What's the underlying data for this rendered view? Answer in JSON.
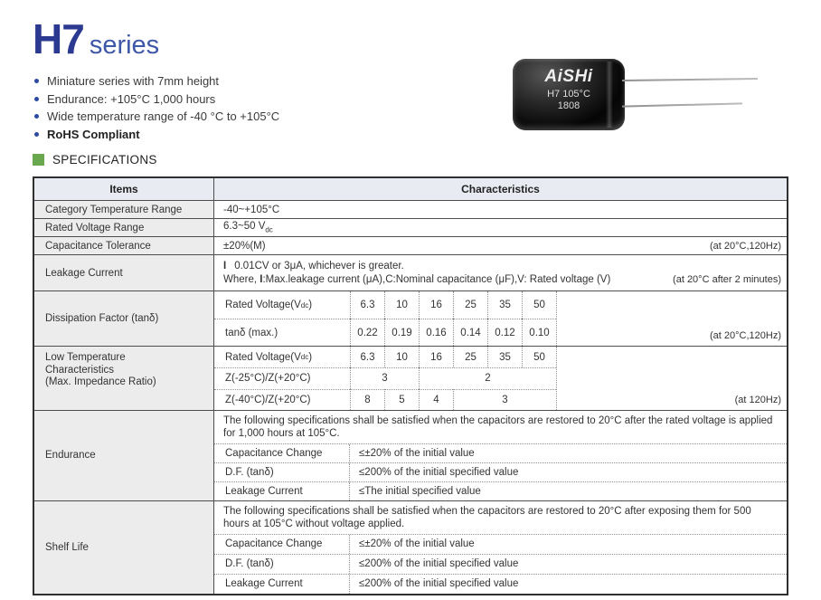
{
  "colors": {
    "title_blue": "#2b3990",
    "series_blue": "#3e57a8",
    "bullet_blue": "#2c4aa0",
    "section_green": "#6aa84f",
    "header_bg": "#e9ebf2",
    "items_col_bg": "#ececec"
  },
  "title": {
    "code": "H7",
    "series": "series"
  },
  "features": [
    "Miniature series with 7mm height",
    "Endurance: +105°C 1,000 hours",
    "Wide temperature range of -40 °C to +105°C",
    "RoHS Compliant"
  ],
  "capacitor": {
    "brand": "AiSHi",
    "line1": "H7 105°C",
    "line2": "1808"
  },
  "section_header": "SPECIFICATIONS",
  "table": {
    "header": {
      "items": "Items",
      "characteristics": "Characteristics"
    },
    "category_row": {
      "label": "Category Temperature Range",
      "value": "-40~+105°C"
    },
    "voltage_row": {
      "label": "Rated Voltage Range",
      "value_pre": "6.3~50 V",
      "value_sub": "dc"
    },
    "tolerance_row": {
      "label": "Capacitance Tolerance",
      "value": "±20%(M)",
      "note": "(at 20°C,120Hz)"
    },
    "leakage_row": {
      "label": "Leakage Current",
      "line1_bold": "I",
      "line1_text": "0.01CV or 3μA, whichever is greater.",
      "line2_pre": "Where, ",
      "line2_bold": "I",
      "line2_text": ":Max.leakage current (μA),C:Nominal capacitance (μF),V: Rated voltage (V)",
      "note": "(at 20°C after 2 minutes)"
    },
    "dissipation": {
      "label": "Dissipation Factor (tanδ)",
      "voltage_label_pre": "Rated Voltage(V",
      "voltage_label_sub": "dc",
      "voltage_label_post": ")",
      "voltages": [
        "6.3",
        "10",
        "16",
        "25",
        "35",
        "50"
      ],
      "tan_label": "tanδ (max.)",
      "tan_values": [
        "0.22",
        "0.19",
        "0.16",
        "0.14",
        "0.12",
        "0.10"
      ],
      "note": "(at 20°C,120Hz)"
    },
    "low_temp": {
      "label_lines": [
        "Low Temperature",
        "Characteristics",
        "(Max. Impedance Ratio)"
      ],
      "voltage_label_pre": "Rated Voltage(V",
      "voltage_label_sub": "dc",
      "voltage_label_post": ")",
      "voltages": [
        "6.3",
        "10",
        "16",
        "25",
        "35",
        "50"
      ],
      "z25_label": "Z(-25°C)/Z(+20°C)",
      "z25_values": [
        "3",
        "2"
      ],
      "z40_label": "Z(-40°C)/Z(+20°C)",
      "z40_values": [
        "8",
        "5",
        "4",
        "3"
      ],
      "note": "(at 120Hz)"
    },
    "endurance": {
      "label": "Endurance",
      "intro": "The following specifications shall be satisfied when the capacitors are restored to 20°C after the rated voltage is applied for 1,000 hours at 105°C.",
      "rows": [
        {
          "label": "Capacitance Change",
          "value": "≤±20% of the initial value"
        },
        {
          "label": "D.F. (tanδ)",
          "value": "≤200% of the initial specified value"
        },
        {
          "label": "Leakage Current",
          "value": "≤The initial specified value"
        }
      ]
    },
    "shelf_life": {
      "label": "Shelf Life",
      "intro": "The following specifications shall be satisfied when the capacitors are restored to 20°C after exposing them for 500 hours at 105°C without voltage applied.",
      "rows": [
        {
          "label": "Capacitance Change",
          "value": "≤±20% of the initial value"
        },
        {
          "label": "D.F. (tanδ)",
          "value": "≤200% of the initial specified value"
        },
        {
          "label": "Leakage Current",
          "value": "≤200% of the initial specified value"
        }
      ]
    }
  }
}
